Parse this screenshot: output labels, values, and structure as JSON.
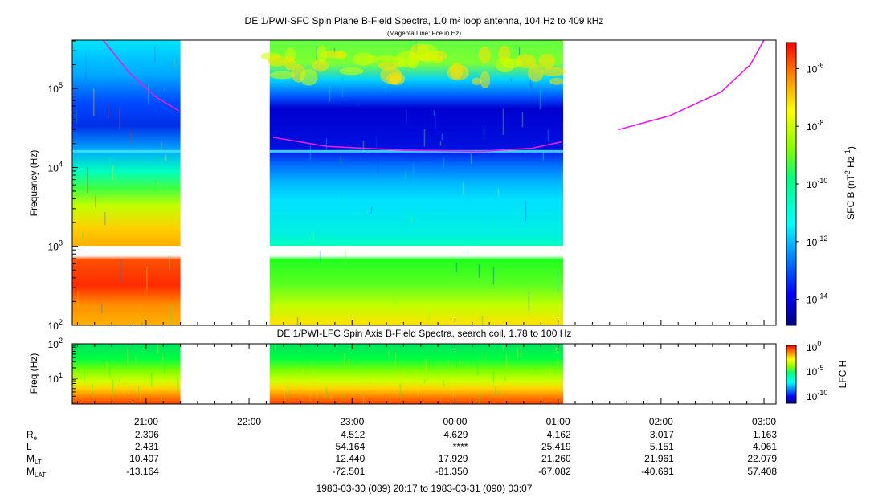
{
  "chart_data": [
    {
      "type": "heatmap",
      "title": "DE 1/PWI-SFC  Spin Plane B-Field Spectra, 1.0 m² loop antenna, 104 Hz to 409 kHz",
      "subtitle": "(Magenta Line: Fce in Hz)",
      "ylabel": "Frequency (Hz)",
      "yscale": "log",
      "ylim": [
        100,
        409000
      ],
      "yticks": [
        {
          "value": 100,
          "base": "10",
          "exp": "2"
        },
        {
          "value": 1000,
          "base": "10",
          "exp": "3"
        },
        {
          "value": 10000,
          "base": "10",
          "exp": "4"
        },
        {
          "value": 100000,
          "base": "10",
          "exp": "5"
        }
      ],
      "colorbar": {
        "label_main": "SFC B (nT",
        "label_sup1": "2",
        "label_mid": " Hz",
        "label_sup2": "-1",
        "label_end": ")",
        "scale": "log",
        "range_exp": [
          -14.9,
          -5.1
        ],
        "ticks": [
          {
            "base": "10",
            "exp": "-6",
            "value_exp": -6
          },
          {
            "base": "10",
            "exp": "-8",
            "value_exp": -8
          },
          {
            "base": "10",
            "exp": "-10",
            "value_exp": -10
          },
          {
            "base": "10",
            "exp": "-12",
            "value_exp": -12
          },
          {
            "base": "10",
            "exp": "-14",
            "value_exp": -14
          }
        ]
      },
      "x_range": [
        "20:17",
        "03:07"
      ],
      "data_segments": [
        {
          "start": "20:17",
          "end": "21:20"
        },
        {
          "start": "22:12",
          "end": "01:03"
        }
      ],
      "fce_line": {
        "name": "Fce in Hz",
        "color": "#e61ee6",
        "segments": [
          [
            [
              "20:35",
              409000
            ],
            [
              "20:50",
              160000
            ],
            [
              "21:05",
              80000
            ],
            [
              "21:19",
              52000
            ]
          ],
          [
            [
              "22:14",
              24000
            ],
            [
              "22:45",
              18500
            ],
            [
              "23:30",
              16500
            ],
            [
              "00:15",
              16000
            ],
            [
              "00:45",
              17500
            ],
            [
              "01:02",
              21000
            ]
          ],
          [
            [
              "01:35",
              30000
            ],
            [
              "02:05",
              45000
            ],
            [
              "02:35",
              90000
            ],
            [
              "02:52",
              200000
            ],
            [
              "03:00",
              409000
            ]
          ]
        ]
      }
    },
    {
      "type": "heatmap",
      "title": "DE 1/PWI-LFC  Spin Axis B-Field Spectra, search coil, 1.78 to 100 Hz",
      "ylabel": "Freq (Hz)",
      "yscale": "log",
      "ylim": [
        1.78,
        100
      ],
      "yticks": [
        {
          "value": 10,
          "base": "10",
          "exp": "1"
        },
        {
          "value": 100,
          "base": "10",
          "exp": "2"
        }
      ],
      "colorbar": {
        "label": "LFC H",
        "scale": "log",
        "ticks": [
          {
            "base": "10",
            "exp": "0"
          },
          {
            "base": "10",
            "exp": "-5"
          },
          {
            "base": "10",
            "exp": "-10"
          }
        ]
      },
      "data_segments": [
        {
          "start": "20:17",
          "end": "21:20"
        },
        {
          "start": "22:12",
          "end": "01:03"
        }
      ]
    }
  ],
  "x_axis": {
    "ticks": [
      "21:00",
      "22:00",
      "23:00",
      "00:00",
      "01:00",
      "02:00",
      "03:00"
    ],
    "tick_minutes": [
      43,
      103,
      163,
      223,
      283,
      343,
      403
    ],
    "total_minutes": 410,
    "minor_every_minutes": 10
  },
  "ephemeris": {
    "rows": [
      {
        "label": "R",
        "sub": "e",
        "values": [
          "2.306",
          "",
          "4.512",
          "4.629",
          "4.162",
          "3.017",
          "1.163"
        ]
      },
      {
        "label": "L",
        "sub": "",
        "values": [
          "2.431",
          "",
          "54.164",
          "****",
          "25.419",
          "5.151",
          "4.061"
        ]
      },
      {
        "label": "M",
        "sub": "LT",
        "values": [
          "10.407",
          "",
          "12.440",
          "17.929",
          "21.260",
          "21.961",
          "22.079"
        ]
      },
      {
        "label": "M",
        "sub": "LAT",
        "values": [
          "-13.164",
          "",
          "-72.501",
          "-81.350",
          "-67.082",
          "-40.691",
          "57.408"
        ]
      }
    ]
  },
  "time_range": "1983-03-30 (089) 20:17 to 1983-03-31 (090) 03:07"
}
